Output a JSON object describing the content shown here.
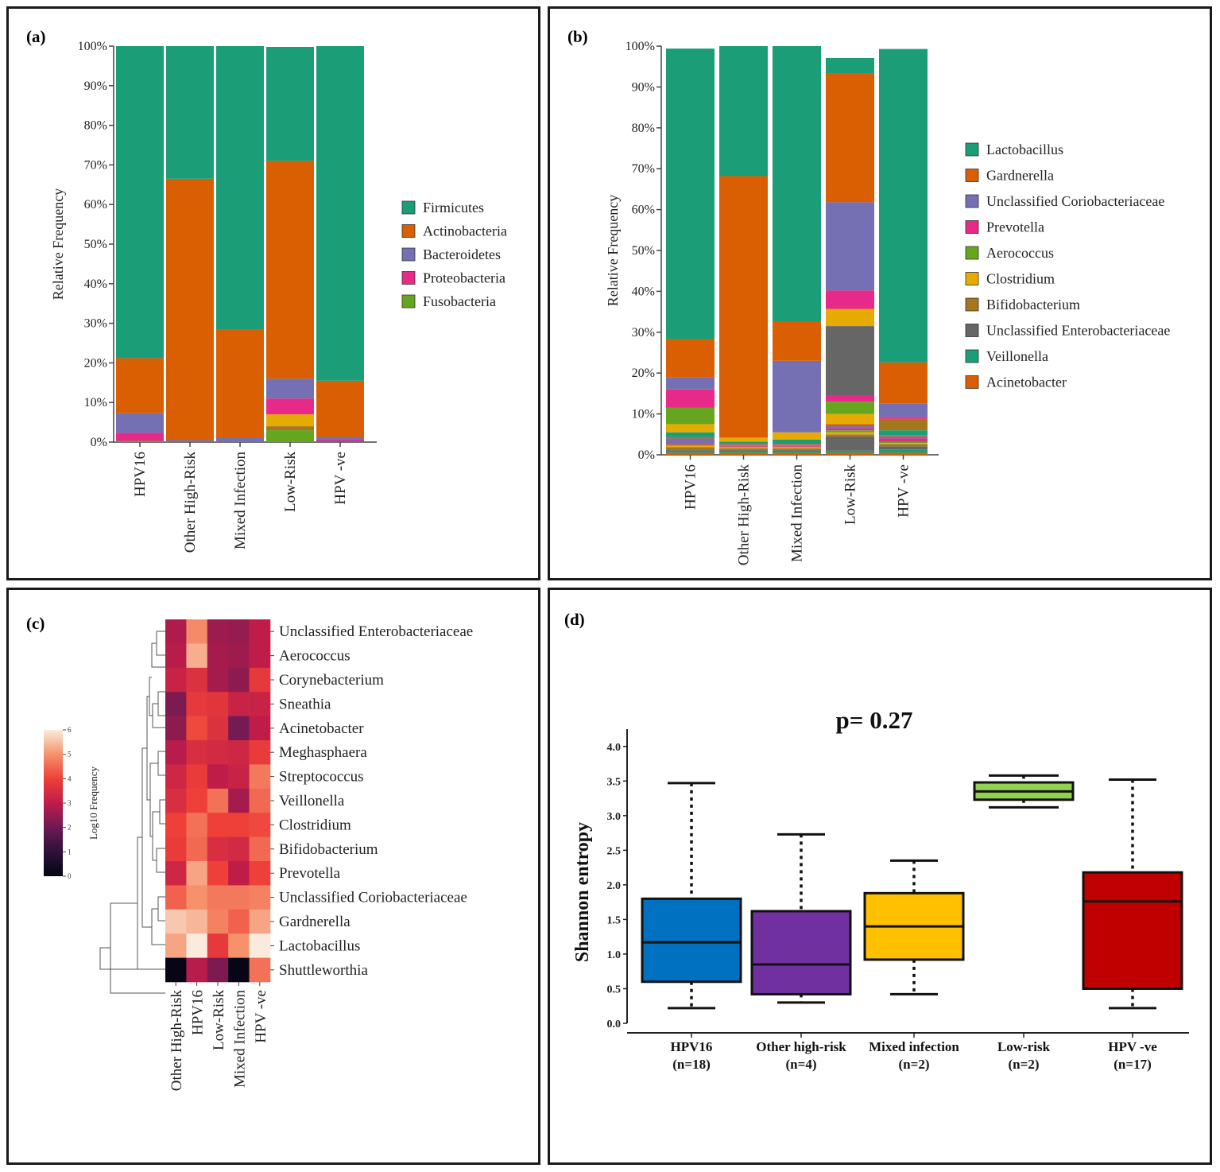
{
  "chart_data": [
    {
      "id": "a",
      "panel_label": "(a)",
      "type": "bar",
      "stacked": true,
      "ylabel": "Relative Frequency",
      "ylim": [
        0,
        100
      ],
      "yticks": [
        "0%",
        "10%",
        "20%",
        "30%",
        "40%",
        "50%",
        "60%",
        "70%",
        "80%",
        "90%",
        "100%"
      ],
      "categories": [
        "HPV16",
        "Other High-Risk",
        "Mixed Infection",
        "Low-Risk",
        "HPV -ve"
      ],
      "legend_position": "right",
      "series": [
        {
          "name": "Fusobacteria",
          "color": "#66a61e",
          "values": [
            0.3,
            0,
            0,
            3,
            0
          ],
          "legend": true
        },
        {
          "name": "Proteobacteria",
          "color": "#e7298a",
          "values": [
            2,
            0,
            0,
            4,
            0.5
          ],
          "legend": true
        },
        {
          "name": "Bacteroidetes",
          "color": "#7570b3",
          "values": [
            5,
            0.5,
            1,
            5,
            0.8
          ],
          "legend": true
        },
        {
          "name": "Actinobacteria",
          "color": "#d95f02",
          "values": [
            13.9,
            66,
            27.5,
            55,
            14.2
          ],
          "legend": true
        },
        {
          "name": "Firmicutes",
          "color": "#1b9e77",
          "values": [
            78.8,
            33.5,
            71.5,
            28.8,
            84.5
          ],
          "legend": true
        }
      ],
      "minor_layers": [
        {
          "color": "#e6ab02",
          "values": [
            0,
            0,
            0,
            3,
            0
          ]
        },
        {
          "color": "#a6761d",
          "values": [
            0,
            0,
            0,
            1,
            0
          ]
        }
      ],
      "legend_order": [
        "Firmicutes",
        "Actinobacteria",
        "Bacteroidetes",
        "Proteobacteria",
        "Fusobacteria"
      ]
    },
    {
      "id": "b",
      "panel_label": "(b)",
      "type": "bar",
      "stacked": true,
      "ylabel": "Relative Frequency",
      "ylim": [
        0,
        100
      ],
      "yticks": [
        "0%",
        "10%",
        "20%",
        "30%",
        "40%",
        "50%",
        "60%",
        "70%",
        "80%",
        "90%",
        "100%"
      ],
      "categories": [
        "HPV16",
        "Other High-Risk",
        "Mixed Infection",
        "Low-Risk",
        "HPV -ve"
      ],
      "legend_position": "right",
      "series": [
        {
          "name": "Acinetobacter",
          "color": "#d95f02",
          "values": [
            0.5,
            0.5,
            0.5,
            0.5,
            0.5
          ]
        },
        {
          "name": "Veillonella",
          "color": "#1b9e77",
          "values": [
            0.5,
            0.5,
            0.5,
            0.5,
            0.8
          ]
        },
        {
          "name": "Unclassified Enterobacteriaceae",
          "color": "#666666",
          "values": [
            0.3,
            0.3,
            0.3,
            3.5,
            0.8
          ]
        },
        {
          "name": "Bifidobacterium",
          "color": "#a6761d",
          "values": [
            0.6,
            0.3,
            0.3,
            0.5,
            0.5
          ]
        },
        {
          "name": "Clostridium",
          "color": "#e6ab02",
          "values": [
            0.3,
            0.2,
            0.2,
            0.5,
            0.3
          ]
        },
        {
          "name": "Aerococcus",
          "color": "#66a61e",
          "values": [
            0.3,
            0.2,
            0.2,
            0.5,
            0.3
          ]
        },
        {
          "name": "Prevotella",
          "color": "#e7298a",
          "values": [
            0.3,
            0.2,
            0.2,
            0.5,
            0.8
          ]
        },
        {
          "name": "Unclassified Coriobacteriaceae",
          "color": "#7570b3",
          "values": [
            1.2,
            0.3,
            0.3,
            0.5,
            0.5
          ]
        },
        {
          "name": "Acinetobacter",
          "color": "#d95f02",
          "values": [
            0.3,
            0.2,
            0.2,
            0.5,
            0.3
          ]
        },
        {
          "name": "Veillonella",
          "color": "#1b9e77",
          "values": [
            1.2,
            0.5,
            1.0,
            0,
            1.2
          ]
        },
        {
          "name": "Unclassified Enterobacteriaceae",
          "color": "#666666",
          "values": [
            0,
            0,
            0,
            0,
            0
          ]
        },
        {
          "name": "Bifidobacterium",
          "color": "#a6761d",
          "values": [
            0,
            0,
            0,
            0,
            2.8
          ]
        },
        {
          "name": "Clostridium",
          "color": "#e6ab02",
          "values": [
            2,
            1,
            1.8,
            2.5,
            0
          ]
        },
        {
          "name": "Aerococcus",
          "color": "#66a61e",
          "values": [
            4,
            0,
            0,
            3,
            0
          ]
        },
        {
          "name": "Prevotella",
          "color": "#e7298a",
          "values": [
            4.5,
            0,
            0,
            1.5,
            0.5
          ]
        },
        {
          "name": "Unclassified Enterobacteriaceae",
          "color": "#666666",
          "values": [
            0,
            0,
            0,
            17,
            0
          ]
        },
        {
          "name": "Veillonella",
          "color": "#1b9e77",
          "values": [
            0,
            0,
            0,
            0,
            0
          ]
        },
        {
          "name": "Clostridium",
          "color": "#e6ab02",
          "values": [
            0,
            0,
            0,
            4.2,
            0
          ]
        },
        {
          "name": "Prevotella",
          "color": "#e7298a",
          "values": [
            0,
            0,
            0,
            4.5,
            0
          ]
        },
        {
          "name": "Unclassified Coriobacteriaceae",
          "color": "#7570b3",
          "values": [
            3,
            0,
            17.5,
            21.6,
            3.3
          ]
        },
        {
          "name": "Gardnerella",
          "color": "#d95f02",
          "values": [
            9.3,
            64,
            9.5,
            31.5,
            10
          ]
        },
        {
          "name": "Lactobacillus",
          "color": "#1b9e77",
          "values": [
            71.1,
            31.8,
            67.5,
            3.8,
            76.7
          ]
        }
      ],
      "legend_order": [
        "Lactobacillus",
        "Gardnerella",
        "Unclassified Coriobacteriaceae",
        "Prevotella",
        "Aerococcus",
        "Clostridium",
        "Bifidobacterium",
        "Unclassified Enterobacteriaceae",
        "Veillonella",
        "Acinetobacter"
      ],
      "legend_colors": [
        "#1b9e77",
        "#d95f02",
        "#7570b3",
        "#e7298a",
        "#66a61e",
        "#e6ab02",
        "#a6761d",
        "#666666",
        "#1b9e77",
        "#d95f02"
      ]
    },
    {
      "id": "c",
      "panel_label": "(c)",
      "type": "heatmap",
      "colorbar_label": "Log10 Frequency",
      "colorbar_range": [
        0,
        6
      ],
      "colorbar_ticks": [
        "0",
        "1",
        "2",
        "3",
        "4",
        "5",
        "6"
      ],
      "columns": [
        "Other High-Risk",
        "HPV16",
        "Low-Risk",
        "Mixed Infection",
        "HPV -ve"
      ],
      "rows": [
        "Unclassified Enterobacteriaceae",
        "Aerococcus",
        "Corynebacterium",
        "Sneathia",
        "Acinetobacter",
        "Meghasphaera",
        "Streptococcus",
        "Veillonella",
        "Clostridium",
        "Bifidobacterium",
        "Prevotella",
        "Unclassified Coriobacteriaceae",
        "Gardnerella",
        "Lactobacillus",
        "Shuttleworthia"
      ],
      "values": [
        [
          2.8,
          4.9,
          2.6,
          2.5,
          3.0
        ],
        [
          2.9,
          5.3,
          2.7,
          2.6,
          3.0
        ],
        [
          3.2,
          3.6,
          2.7,
          2.4,
          3.8
        ],
        [
          2.2,
          3.8,
          3.7,
          3.2,
          3.2
        ],
        [
          2.4,
          4.1,
          3.6,
          2.1,
          3.0
        ],
        [
          2.9,
          3.5,
          3.4,
          3.3,
          3.9
        ],
        [
          3.3,
          3.9,
          3.0,
          3.2,
          4.7
        ],
        [
          3.5,
          4.0,
          4.6,
          2.7,
          4.5
        ],
        [
          4.0,
          4.6,
          4.0,
          4.0,
          4.1
        ],
        [
          3.9,
          4.5,
          3.5,
          3.4,
          4.5
        ],
        [
          3.3,
          5.2,
          4.0,
          3.0,
          4.0
        ],
        [
          4.4,
          5.0,
          4.7,
          4.7,
          4.8
        ],
        [
          5.6,
          5.4,
          4.8,
          4.4,
          5.2
        ],
        [
          5.2,
          6.0,
          3.8,
          5.0,
          6.0
        ],
        [
          0.1,
          2.9,
          2.2,
          0.1,
          4.6
        ]
      ]
    },
    {
      "id": "d",
      "panel_label": "(d)",
      "type": "boxplot",
      "title": "p= 0.27",
      "ylabel": "Shannon entropy",
      "ylim": [
        0,
        4.25
      ],
      "yticks": [
        "0.0",
        "0.5",
        "1.0",
        "1.5",
        "2.0",
        "2.5",
        "3.0",
        "3.5",
        "4.0"
      ],
      "groups": [
        {
          "name": "HPV16",
          "n": "(n=18)",
          "color": "#0070c0",
          "min": 0.22,
          "q1": 0.6,
          "median": 1.17,
          "q3": 1.8,
          "max": 3.47
        },
        {
          "name": "Other high-risk",
          "n": "(n=4)",
          "color": "#7030a0",
          "min": 0.3,
          "q1": 0.42,
          "median": 0.85,
          "q3": 1.62,
          "max": 2.73
        },
        {
          "name": "Mixed infection",
          "n": "(n=2)",
          "color": "#ffc000",
          "min": 0.42,
          "q1": 0.92,
          "median": 1.4,
          "q3": 1.88,
          "max": 2.35
        },
        {
          "name": "Low-risk",
          "n": "(n=2)",
          "color": "#92d050",
          "min": 3.12,
          "q1": 3.23,
          "median": 3.35,
          "q3": 3.48,
          "max": 3.58
        },
        {
          "name": "HPV -ve",
          "n": "(n=17)",
          "color": "#c00000",
          "min": 0.22,
          "q1": 0.5,
          "median": 1.76,
          "q3": 2.18,
          "max": 3.52
        }
      ]
    }
  ]
}
